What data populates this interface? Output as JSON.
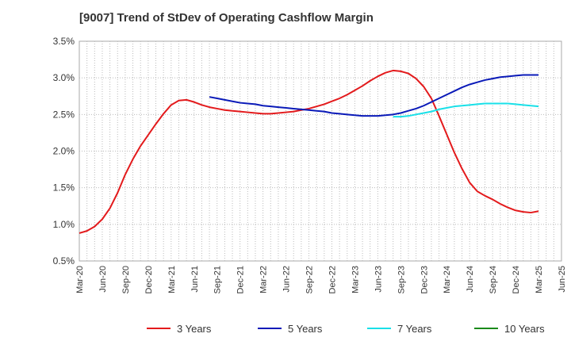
{
  "chart_data": {
    "type": "line",
    "title": "[9007]  Trend of StDev of Operating Cashflow Margin",
    "xlabel": "",
    "ylabel": "",
    "ylim": [
      0.5,
      3.5
    ],
    "yticks": [
      "0.5%",
      "1.0%",
      "1.5%",
      "2.0%",
      "2.5%",
      "3.0%",
      "3.5%"
    ],
    "ytick_values": [
      0.5,
      1.0,
      1.5,
      2.0,
      2.5,
      3.0,
      3.5
    ],
    "x_ticks": [
      "Mar-20",
      "Jun-20",
      "Sep-20",
      "Dec-20",
      "Mar-21",
      "Jun-21",
      "Sep-21",
      "Dec-21",
      "Mar-22",
      "Jun-22",
      "Sep-22",
      "Dec-22",
      "Mar-23",
      "Jun-23",
      "Sep-23",
      "Dec-23",
      "Mar-24",
      "Jun-24",
      "Sep-24",
      "Dec-24",
      "Mar-25",
      "Jun-25"
    ],
    "grid": true,
    "legend_position": "bottom",
    "series": [
      {
        "name": "3 Years",
        "color": "#e31a1c",
        "x": [
          "Mar-20",
          "Apr-20",
          "May-20",
          "Jun-20",
          "Jul-20",
          "Aug-20",
          "Sep-20",
          "Oct-20",
          "Nov-20",
          "Dec-20",
          "Jan-21",
          "Feb-21",
          "Mar-21",
          "Apr-21",
          "May-21",
          "Jun-21",
          "Jul-21",
          "Aug-21",
          "Sep-21",
          "Oct-21",
          "Nov-21",
          "Dec-21",
          "Jan-22",
          "Feb-22",
          "Mar-22",
          "Apr-22",
          "May-22",
          "Jun-22",
          "Jul-22",
          "Aug-22",
          "Sep-22",
          "Oct-22",
          "Nov-22",
          "Dec-22",
          "Jan-23",
          "Feb-23",
          "Mar-23",
          "Apr-23",
          "May-23",
          "Jun-23",
          "Jul-23",
          "Aug-23",
          "Sep-23",
          "Oct-23",
          "Nov-23",
          "Dec-23",
          "Jan-24",
          "Feb-24",
          "Mar-24",
          "Apr-24",
          "May-24",
          "Jun-24",
          "Jul-24",
          "Aug-24",
          "Sep-24",
          "Oct-24",
          "Nov-24",
          "Dec-24",
          "Jan-25",
          "Feb-25",
          "Mar-25"
        ],
        "values": [
          0.88,
          0.91,
          0.97,
          1.07,
          1.22,
          1.43,
          1.68,
          1.89,
          2.07,
          2.22,
          2.37,
          2.51,
          2.63,
          2.69,
          2.7,
          2.67,
          2.63,
          2.6,
          2.58,
          2.56,
          2.55,
          2.54,
          2.53,
          2.52,
          2.51,
          2.51,
          2.52,
          2.53,
          2.54,
          2.56,
          2.58,
          2.61,
          2.64,
          2.68,
          2.72,
          2.77,
          2.83,
          2.89,
          2.96,
          3.02,
          3.07,
          3.1,
          3.09,
          3.06,
          2.99,
          2.88,
          2.72,
          2.48,
          2.23,
          1.98,
          1.76,
          1.57,
          1.45,
          1.39,
          1.34,
          1.28,
          1.23,
          1.19,
          1.17,
          1.16,
          1.18
        ]
      },
      {
        "name": "5 Years",
        "color": "#0a1ab8",
        "x": [
          "Aug-21",
          "Sep-21",
          "Oct-21",
          "Nov-21",
          "Dec-21",
          "Jan-22",
          "Feb-22",
          "Mar-22",
          "Apr-22",
          "May-22",
          "Jun-22",
          "Jul-22",
          "Aug-22",
          "Sep-22",
          "Oct-22",
          "Nov-22",
          "Dec-22",
          "Jan-23",
          "Feb-23",
          "Mar-23",
          "Apr-23",
          "May-23",
          "Jun-23",
          "Jul-23",
          "Aug-23",
          "Sep-23",
          "Oct-23",
          "Nov-23",
          "Dec-23",
          "Jan-24",
          "Feb-24",
          "Mar-24",
          "Apr-24",
          "May-24",
          "Jun-24",
          "Jul-24",
          "Aug-24",
          "Sep-24",
          "Oct-24",
          "Nov-24",
          "Dec-24",
          "Jan-25",
          "Feb-25",
          "Mar-25"
        ],
        "values": [
          2.74,
          2.72,
          2.7,
          2.68,
          2.66,
          2.65,
          2.64,
          2.62,
          2.61,
          2.6,
          2.59,
          2.58,
          2.57,
          2.56,
          2.55,
          2.54,
          2.52,
          2.51,
          2.5,
          2.49,
          2.48,
          2.48,
          2.48,
          2.49,
          2.5,
          2.52,
          2.55,
          2.58,
          2.62,
          2.67,
          2.72,
          2.77,
          2.82,
          2.87,
          2.91,
          2.94,
          2.97,
          2.99,
          3.01,
          3.02,
          3.03,
          3.04,
          3.04,
          3.04
        ]
      },
      {
        "name": "7 Years",
        "color": "#19e0e8",
        "x": [
          "Aug-23",
          "Sep-23",
          "Oct-23",
          "Nov-23",
          "Dec-23",
          "Jan-24",
          "Feb-24",
          "Mar-24",
          "Apr-24",
          "May-24",
          "Jun-24",
          "Jul-24",
          "Aug-24",
          "Sep-24",
          "Oct-24",
          "Nov-24",
          "Dec-24",
          "Jan-25",
          "Feb-25",
          "Mar-25"
        ],
        "values": [
          2.47,
          2.47,
          2.48,
          2.5,
          2.52,
          2.54,
          2.57,
          2.59,
          2.61,
          2.62,
          2.63,
          2.64,
          2.65,
          2.65,
          2.65,
          2.65,
          2.64,
          2.63,
          2.62,
          2.61
        ]
      },
      {
        "name": "10 Years",
        "color": "#1a8a1a",
        "x": [],
        "values": []
      }
    ]
  }
}
